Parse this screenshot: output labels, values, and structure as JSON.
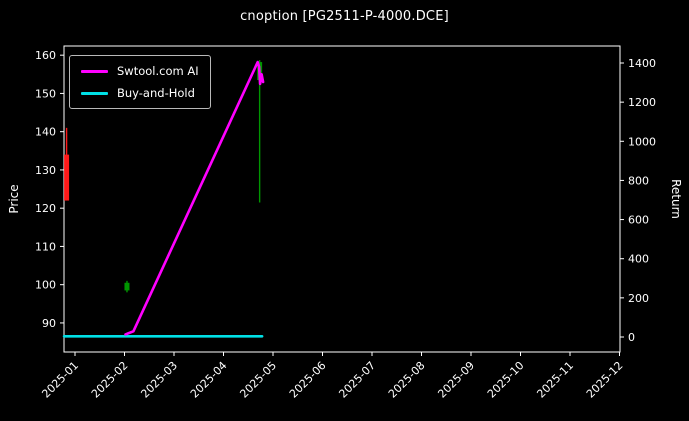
{
  "title": "cnoption [PG2511-P-4000.DCE]",
  "legend": [
    {
      "label": "Swtool.com AI",
      "color": "#ff00ff"
    },
    {
      "label": "Buy-and-Hold",
      "color": "#00e0e6"
    }
  ],
  "colors": {
    "background": "#000000",
    "foreground": "#ffffff",
    "up_candle": "#009600",
    "down_candle": "#ff1a1a",
    "strategy_line": "#ff00ff",
    "buyhold_line": "#00e0e6"
  },
  "chart_data": {
    "type": "line",
    "title": "cnoption [PG2511-P-4000.DCE]",
    "background": "#000000",
    "grid": false,
    "legend_position": "upper left",
    "x_ticks": [
      "2025-01",
      "2025-02",
      "2025-03",
      "2025-04",
      "2025-05",
      "2025-06",
      "2025-07",
      "2025-08",
      "2025-09",
      "2025-10",
      "2025-11",
      "2025-12"
    ],
    "left_axis": {
      "label": "Price",
      "ticks": [
        90,
        100,
        110,
        120,
        130,
        140,
        150,
        160
      ],
      "range": [
        82.4,
        162.4
      ]
    },
    "right_axis": {
      "label": "Return",
      "ticks": [
        0,
        200,
        400,
        600,
        800,
        1000,
        1200,
        1400
      ],
      "range": [
        -77,
        1487
      ]
    },
    "series": [
      {
        "name": "Buy-and-Hold",
        "color": "#00e0e6",
        "width": 2.6,
        "axis": "price",
        "points": [
          [
            -0.22,
            86.5
          ],
          [
            3.78,
            86.5
          ]
        ]
      },
      {
        "name": "Swtool.com AI",
        "color": "#ff00ff",
        "width": 2.6,
        "axis": "price",
        "points": [
          [
            1.02,
            87.0
          ],
          [
            1.18,
            87.8
          ],
          [
            3.69,
            158.2
          ],
          [
            3.72,
            157.0
          ],
          [
            3.74,
            152.5
          ],
          [
            3.77,
            155.0
          ],
          [
            3.8,
            153.0
          ]
        ]
      }
    ],
    "candles": [
      {
        "x": -0.17,
        "low": 122.0,
        "high": 141.0,
        "open": 134.0,
        "close": 122.0,
        "color": "#ff1a1a"
      },
      {
        "x": 1.05,
        "low": 98.0,
        "high": 101.0,
        "open": 98.5,
        "close": 100.5,
        "color": "#009600"
      },
      {
        "x": 3.73,
        "low": 121.5,
        "high": 158.7,
        "open": 153.5,
        "close": 158.2,
        "color": "#009600"
      }
    ]
  }
}
